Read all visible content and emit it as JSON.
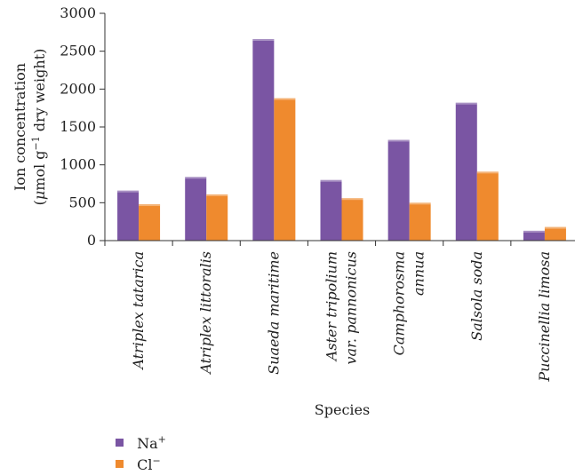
{
  "chart_data": {
    "type": "bar",
    "title": "",
    "xlabel": "Species",
    "ylabel_line1": "Ion concentration",
    "ylabel_line2_parts": [
      "(",
      "μ",
      "mol g",
      "−1",
      " dry weight)"
    ],
    "ylim": [
      0,
      3000
    ],
    "yticks": [
      0,
      500,
      1000,
      1500,
      2000,
      2500,
      3000
    ],
    "categories": [
      [
        "Atriplex tatarica"
      ],
      [
        "Atriplex littoralis"
      ],
      [
        "Suaeda maritime"
      ],
      [
        "Aster tripolium",
        "var. pannonicus"
      ],
      [
        "Camphorosma",
        "annua"
      ],
      [
        "Salsola soda"
      ],
      [
        "Puccinellia limosa"
      ]
    ],
    "series": [
      {
        "name": "Na",
        "sup": "+",
        "color": "#7a55a3",
        "values": [
          660,
          840,
          2660,
          800,
          1330,
          1820,
          130
        ]
      },
      {
        "name": "Cl",
        "sup": "−",
        "color": "#ef8a2e",
        "values": [
          480,
          610,
          1880,
          560,
          500,
          910,
          180
        ]
      }
    ],
    "grid": false,
    "legend_position": "bottom-left"
  }
}
